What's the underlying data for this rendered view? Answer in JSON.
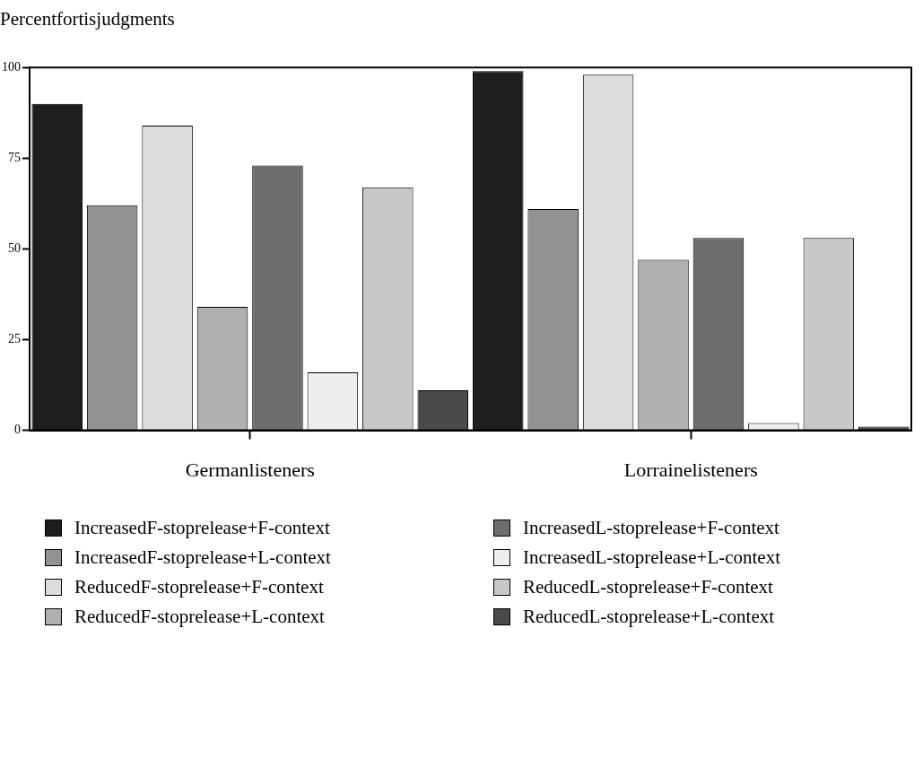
{
  "chart_data": {
    "type": "bar",
    "title": "Percentfortisjudgments",
    "categories": [
      "Germanlisteners",
      "Lorrainelisteners"
    ],
    "series": [
      {
        "name": "IncreasedF-stoprelease+F-context",
        "color": "#1e1e1e",
        "values": [
          90,
          99
        ]
      },
      {
        "name": "IncreasedF-stoprelease+L-context",
        "color": "#929292",
        "values": [
          62,
          61
        ]
      },
      {
        "name": "ReducedF-stoprelease+F-context",
        "color": "#dcdcdc",
        "values": [
          84,
          98
        ]
      },
      {
        "name": "ReducedF-stoprelease+L-context",
        "color": "#b0b0b0",
        "values": [
          34,
          47
        ]
      },
      {
        "name": "IncreasedL-stoprelease+F-context",
        "color": "#6e6e6e",
        "values": [
          73,
          53
        ]
      },
      {
        "name": "IncreasedL-stoprelease+L-context",
        "color": "#eeeeee",
        "values": [
          16,
          2
        ]
      },
      {
        "name": "ReducedL-stoprelease+F-context",
        "color": "#c8c8c8",
        "values": [
          67,
          53
        ]
      },
      {
        "name": "ReducedL-stoprelease+L-context",
        "color": "#4a4a4a",
        "values": [
          11,
          1
        ]
      }
    ],
    "ylim": [
      0,
      100
    ],
    "yticks": [
      0,
      25,
      50,
      75,
      100
    ],
    "grid": false,
    "legend": "bottom"
  }
}
